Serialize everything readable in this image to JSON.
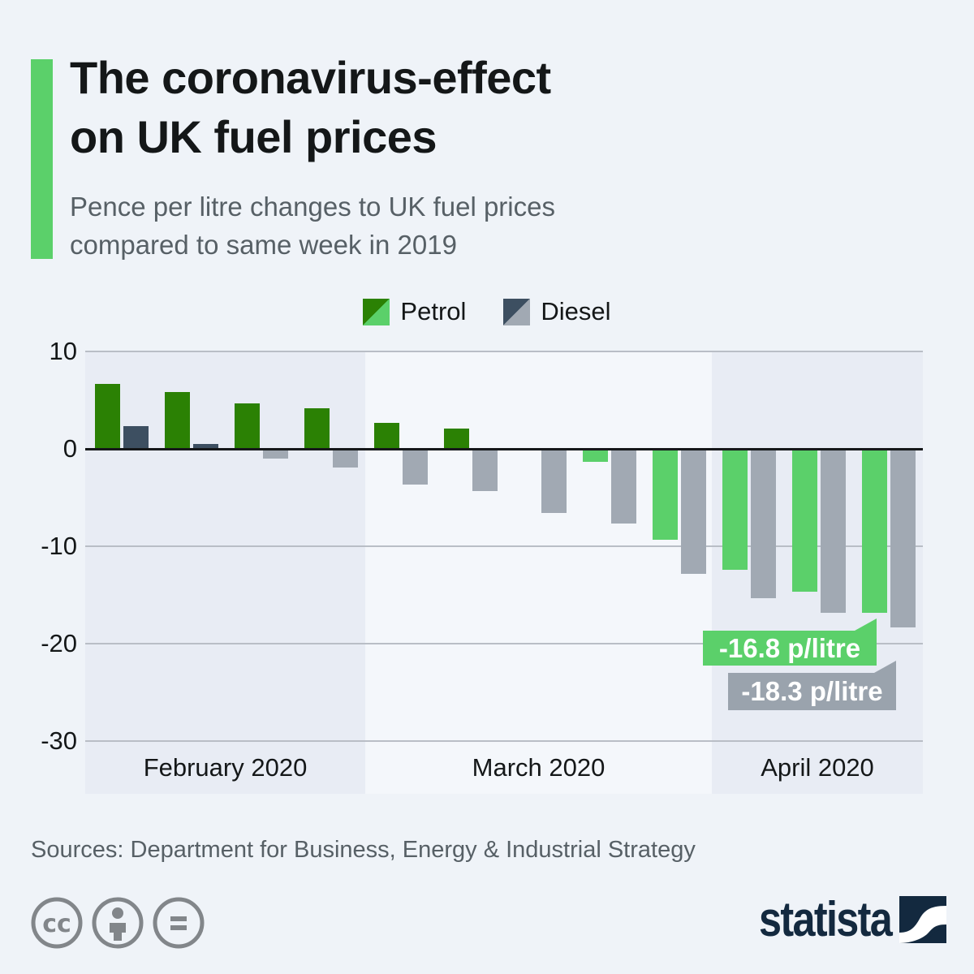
{
  "header": {
    "title_line1": "The coronavirus-effect",
    "title_line2": "on UK fuel prices",
    "subtitle_line1": "Pence per litre changes to UK fuel prices",
    "subtitle_line2": "compared to same week in 2019"
  },
  "legend": {
    "items": [
      {
        "label": "Petrol"
      },
      {
        "label": "Diesel"
      }
    ]
  },
  "chart_data": {
    "type": "bar",
    "ylim": [
      -30,
      10
    ],
    "yticks": [
      10,
      0,
      -10,
      -20,
      -30
    ],
    "grid": true,
    "legend_position": "top-center",
    "categories_months": [
      {
        "label": "February 2020",
        "weeks": 4
      },
      {
        "label": "March 2020",
        "weeks": 5
      },
      {
        "label": "April 2020",
        "weeks": 3
      }
    ],
    "series": [
      {
        "name": "Petrol",
        "values": [
          6.7,
          5.8,
          4.7,
          4.2,
          2.7,
          2.1,
          -0.1,
          -1.3,
          -9.3,
          -12.4,
          -14.7,
          -16.8
        ]
      },
      {
        "name": "Diesel",
        "values": [
          2.3,
          0.5,
          -1.0,
          -1.9,
          -3.7,
          -4.3,
          -6.6,
          -7.7,
          -12.8,
          -15.3,
          -16.8,
          -18.3
        ]
      }
    ],
    "annotations": [
      {
        "series": "Petrol",
        "value": -16.8,
        "text": "-16.8 p/litre"
      },
      {
        "series": "Diesel",
        "value": -18.3,
        "text": "-18.3 p/litre"
      }
    ]
  },
  "footer": {
    "sources": "Sources: Department for Business, Energy & Industrial Strategy",
    "license_icons": [
      "cc-icon",
      "attribution-person-icon",
      "equal-icon"
    ],
    "brand": "statista"
  },
  "colors": {
    "accent_green": "#5bd06a",
    "petrol_positive": "#2b8104",
    "petrol_negative": "#5bd06a",
    "diesel_positive": "#3d4f61",
    "diesel_negative": "#a1a9b3",
    "petrol_callout_bg": "#5bd06a",
    "diesel_callout_bg": "#9aa3ad",
    "page_background": "#eff3f8",
    "band_dark": "#e8ecf4",
    "band_light": "#f4f7fb",
    "gridline": "#b9bec6",
    "zero_line": "#16181a",
    "brand_navy": "#13293f",
    "text_dark": "#141718",
    "text_gray": "#576066",
    "icon_gray": "#82868a"
  }
}
